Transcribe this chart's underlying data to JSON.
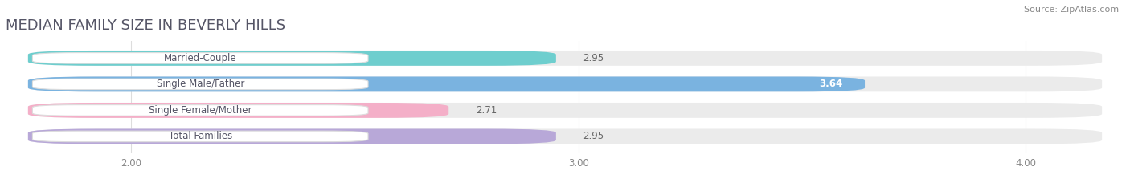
{
  "title": "MEDIAN FAMILY SIZE IN BEVERLY HILLS",
  "source": "Source: ZipAtlas.com",
  "categories": [
    "Married-Couple",
    "Single Male/Father",
    "Single Female/Mother",
    "Total Families"
  ],
  "values": [
    2.95,
    3.64,
    2.71,
    2.95
  ],
  "bar_colors": [
    "#6ecece",
    "#7ab3e0",
    "#f4afc8",
    "#b8a8d8"
  ],
  "track_color": "#ebebeb",
  "xlim_min": 1.72,
  "xlim_max": 4.22,
  "xticks": [
    2.0,
    3.0,
    4.0
  ],
  "xtick_labels": [
    "2.00",
    "3.00",
    "4.00"
  ],
  "bar_height": 0.58,
  "label_fontsize": 8.5,
  "value_fontsize": 8.5,
  "title_fontsize": 13,
  "source_fontsize": 8,
  "background_color": "#ffffff",
  "title_color": "#555566",
  "source_color": "#888888",
  "label_text_color": "#555566",
  "value_color_outside": "#666666",
  "value_color_inside": "#ffffff",
  "grid_color": "#dddddd"
}
